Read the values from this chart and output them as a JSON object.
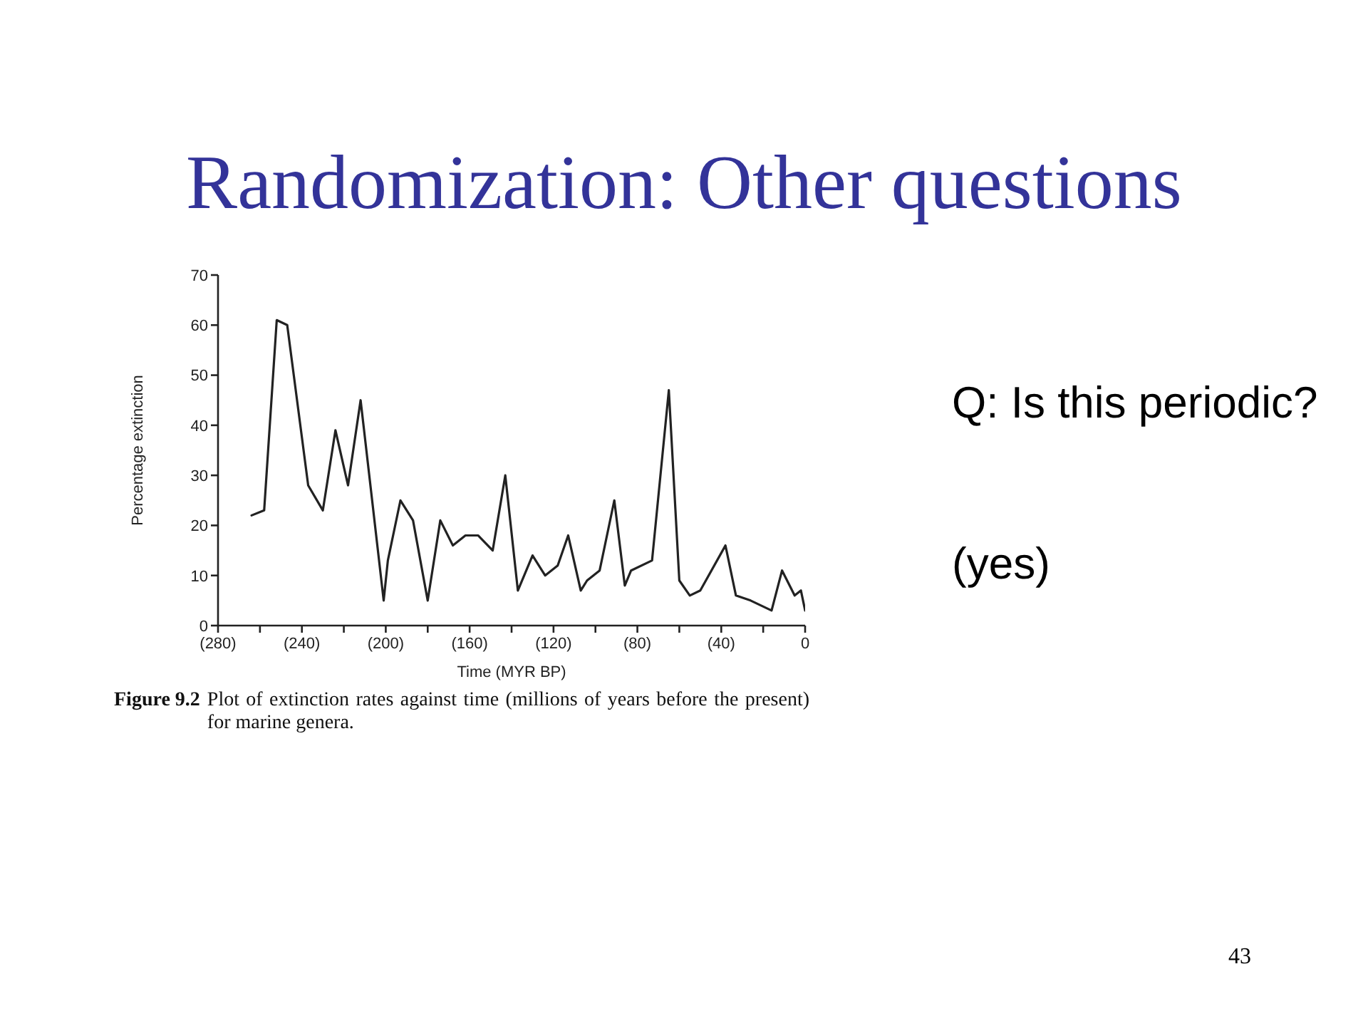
{
  "chart_data": {
    "type": "line",
    "title": "Randomization: Other questions",
    "xlabel": "Time (MYR BP)",
    "ylabel": "Percentage extinction",
    "annotations": [
      "Q: Is this periodic?",
      "(yes)",
      "Figure 9.2",
      "Plot of extinction rates against time (millions of years before the present) for marine genera.",
      "43"
    ],
    "x": [
      -264,
      -258,
      -252,
      -247,
      -237,
      -230,
      -224,
      -218,
      -212,
      -201,
      -199,
      -193,
      -187,
      -180,
      -174,
      -168,
      -162,
      -156,
      -149,
      -143,
      -137,
      -130,
      -124,
      -118,
      -113,
      -107,
      -104,
      -98,
      -91,
      -86,
      -83,
      -73,
      -65,
      -60,
      -55,
      -50,
      -38,
      -33,
      -26,
      -16,
      -11,
      -5,
      -2,
      0
    ],
    "values": [
      22,
      23,
      61,
      60,
      28,
      23,
      39,
      28,
      45,
      5,
      13,
      25,
      21,
      5,
      21,
      16,
      18,
      18,
      15,
      30,
      7,
      14,
      10,
      12,
      18,
      7,
      9,
      11,
      25,
      8,
      11,
      13,
      47,
      9,
      6,
      7,
      16,
      6,
      5,
      3,
      11,
      6,
      7,
      3
    ],
    "color": "#222222",
    "marker": "none",
    "xlim": [
      -280,
      0
    ],
    "xticks": [
      {
        "value": -280,
        "label": "(280)"
      },
      {
        "value": -260,
        "label": null
      },
      {
        "value": -240,
        "label": "(240)"
      },
      {
        "value": -220,
        "label": null
      },
      {
        "value": -200,
        "label": "(200)"
      },
      {
        "value": -180,
        "label": null
      },
      {
        "value": -160,
        "label": "(160)"
      },
      {
        "value": -140,
        "label": null
      },
      {
        "value": -120,
        "label": "(120)"
      },
      {
        "value": -100,
        "label": null
      },
      {
        "value": -80,
        "label": "(80)"
      },
      {
        "value": -60,
        "label": null
      },
      {
        "value": -40,
        "label": "(40)"
      },
      {
        "value": -20,
        "label": null
      },
      0
    ],
    "ylim": [
      0,
      70
    ],
    "yticks": [
      0,
      10,
      20,
      30,
      40,
      50,
      60,
      70
    ]
  }
}
